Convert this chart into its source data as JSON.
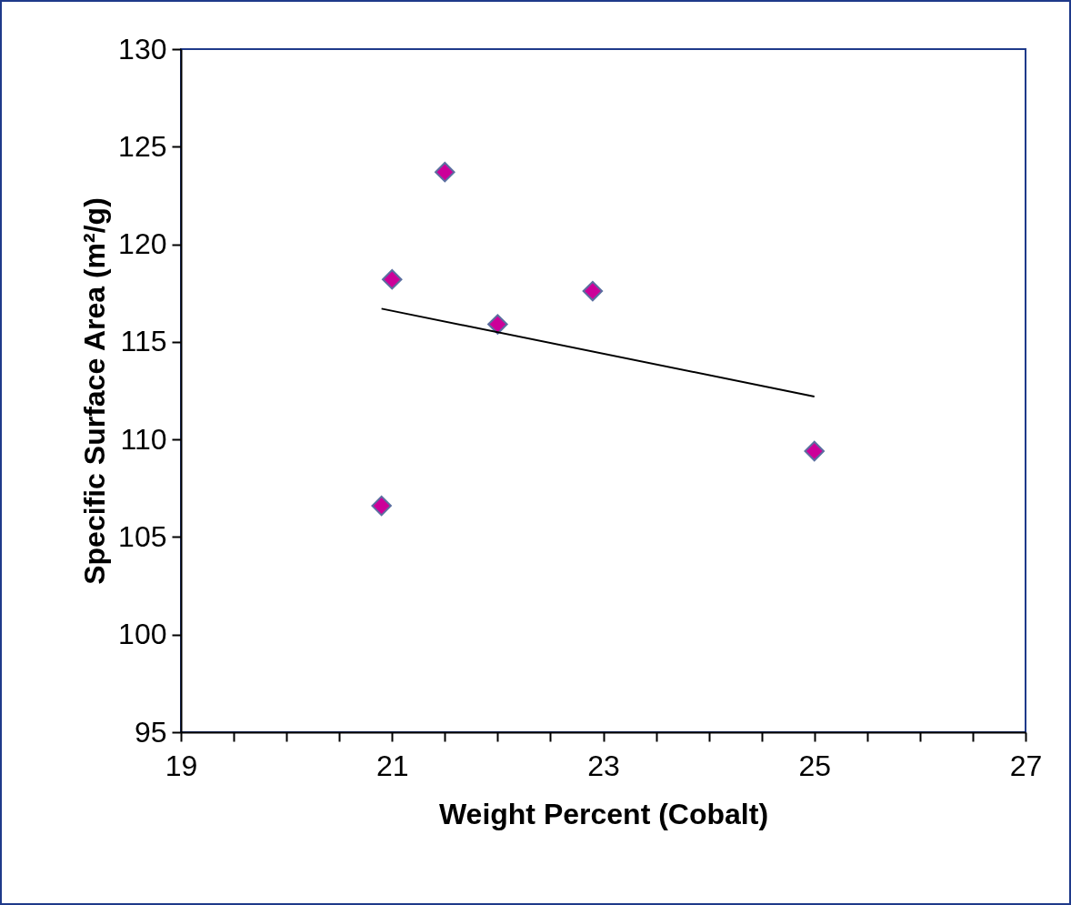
{
  "chart_data": {
    "type": "scatter",
    "xlabel": "Weight Percent (Cobalt)",
    "ylabel": "Specific Surface Area (m²/g)",
    "xlim": [
      19,
      27
    ],
    "ylim": [
      95,
      130
    ],
    "xticks": [
      19,
      {
        "value": 19.5,
        "label": null
      },
      {
        "value": 20,
        "label": null
      },
      {
        "value": 20.5,
        "label": null
      },
      21,
      {
        "value": 21.5,
        "label": null
      },
      {
        "value": 22,
        "label": null
      },
      {
        "value": 22.5,
        "label": null
      },
      23,
      {
        "value": 23.5,
        "label": null
      },
      {
        "value": 24,
        "label": null
      },
      {
        "value": 24.5,
        "label": null
      },
      25,
      {
        "value": 25.5,
        "label": null
      },
      {
        "value": 26,
        "label": null
      },
      {
        "value": 26.5,
        "label": null
      },
      27
    ],
    "yticks": [
      95,
      100,
      105,
      110,
      115,
      120,
      125,
      130
    ],
    "grid": false,
    "marker": "diamond",
    "series": [
      {
        "color": "#cc0099",
        "x": [
          20.9,
          21.0,
          21.5,
          22.0,
          22.9,
          25.0
        ],
        "values": [
          106.6,
          118.2,
          123.7,
          115.9,
          117.6,
          109.4
        ]
      },
      {
        "type": "line",
        "color": "#000000",
        "marker": "none",
        "x": [
          20.9,
          25.0
        ],
        "values": [
          116.7,
          112.2
        ]
      }
    ]
  }
}
